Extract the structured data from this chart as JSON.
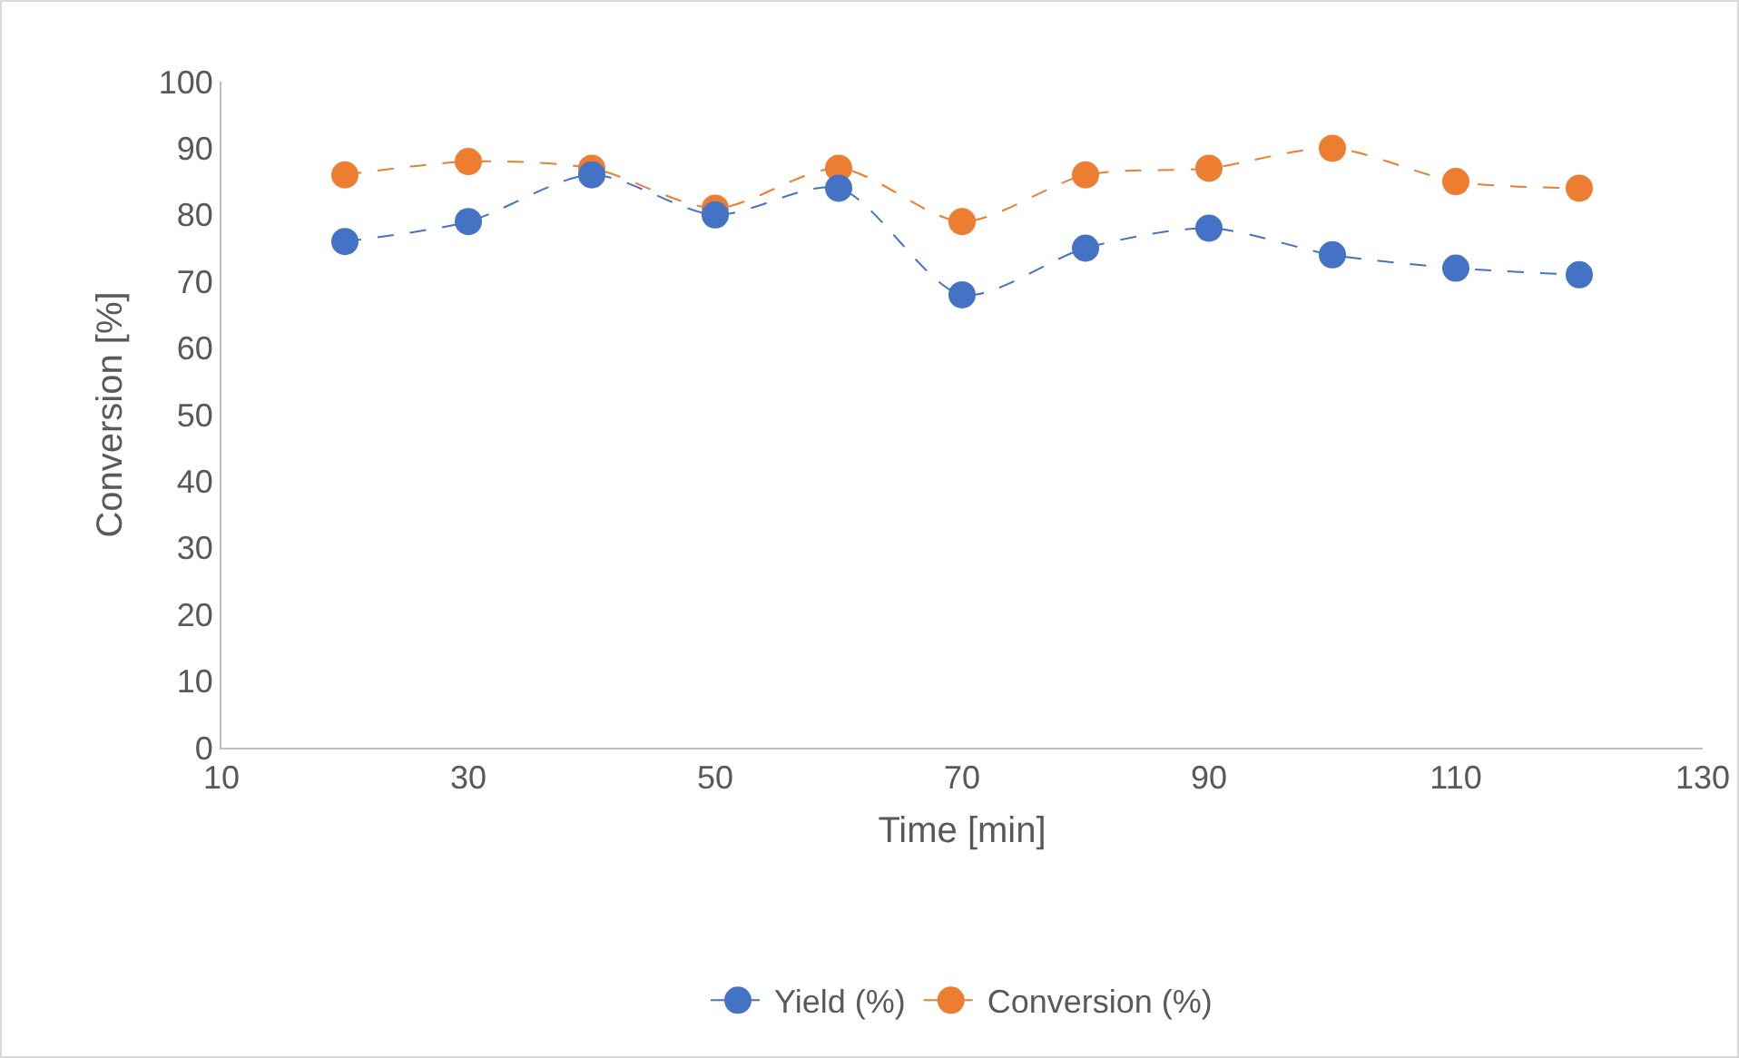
{
  "chart_data": {
    "type": "line",
    "xlabel": "Time [min]",
    "ylabel": "Conversion [%]",
    "x": [
      20,
      30,
      40,
      50,
      60,
      70,
      80,
      90,
      100,
      110,
      120
    ],
    "series": [
      {
        "name": "Yield (%)",
        "color": "#4472c4",
        "values": [
          76,
          79,
          86,
          80,
          84,
          68,
          75,
          78,
          74,
          72,
          71
        ]
      },
      {
        "name": "Conversion (%)",
        "color": "#ed7d31",
        "values": [
          86,
          88,
          87,
          81,
          87,
          79,
          86,
          87,
          90,
          85,
          84
        ]
      }
    ],
    "xlim": [
      10,
      130
    ],
    "xticks": [
      10,
      30,
      50,
      70,
      90,
      110,
      130
    ],
    "ylim": [
      0,
      100
    ],
    "yticks": [
      0,
      10,
      20,
      30,
      40,
      50,
      60,
      70,
      80,
      90,
      100
    ],
    "grid": false,
    "legend": "bottom",
    "marker": "circle",
    "line_style": "dashed"
  }
}
